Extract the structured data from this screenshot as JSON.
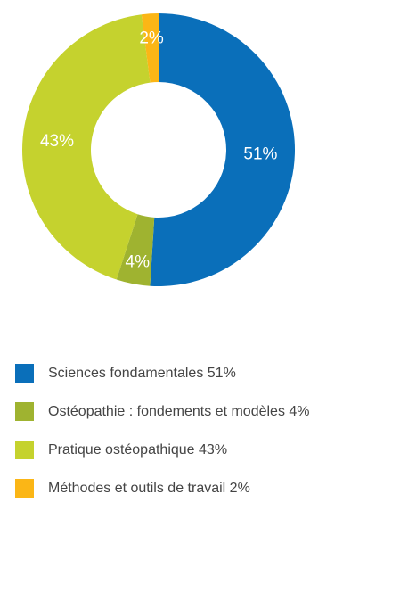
{
  "chart_data": {
    "type": "pie",
    "donut": true,
    "categories": [
      "Sciences fondamentales",
      "Ostéopathie : fondements et modèles",
      "Pratique ostéopathique",
      "Méthodes et outils de travail"
    ],
    "values": [
      51,
      4,
      43,
      2
    ],
    "value_labels": [
      "51%",
      "4%",
      "43%",
      "2%"
    ],
    "colors": [
      "#0a6fba",
      "#9fb330",
      "#c5d22e",
      "#fbb616"
    ],
    "start_angle": "12 o'clock, clockwise",
    "legend_position": "bottom",
    "legend": [
      {
        "label": "Sciences fondamentales 51%",
        "color": "#0a6fba"
      },
      {
        "label": "Ostéopathie : fondements et modèles 4%",
        "color": "#9fb330"
      },
      {
        "label": "Pratique ostéopathique 43%",
        "color": "#c5d22e"
      },
      {
        "label": "Méthodes et outils de travail 2%",
        "color": "#fbb616"
      }
    ]
  }
}
